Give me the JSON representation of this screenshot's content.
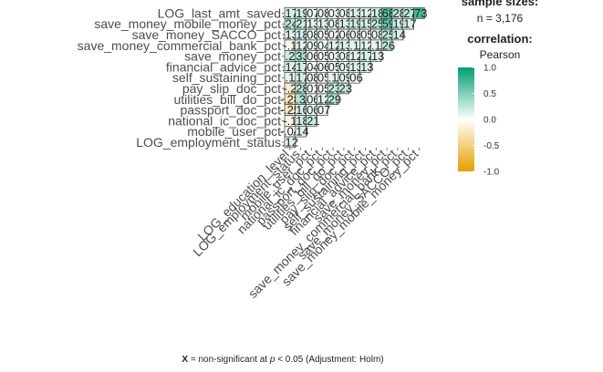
{
  "chart_data": {
    "type": "heatmap",
    "method": "Pearson",
    "row_labels": [
      "LOG_last_amt_saved",
      "save_money_mobile_money_pct",
      "save_money_SACCO_pct",
      "save_money_commercial_bank_pct",
      "save_money_pct",
      "financial_advice_pct",
      "self_sustaining_pct",
      "pay_slip_doc_pct",
      "utilities_bill_do_pct",
      "passport_doc_pct",
      "national_ic_doc_pct",
      "mobile_user_pct",
      "LOG_employment_status"
    ],
    "col_labels": [
      "LOG_education_level",
      "LOG_employment_status",
      "mobile_user_pct",
      "national_ic_doc_pct",
      "passport_doc_pct",
      "utilities_bill_do_pct",
      "pay_slip_doc_pct",
      "self_sustaining_pct",
      "financial_advice_pct",
      "save_money_pct",
      "save_money_commercial_bank_pct",
      "save_money_SACCO_pct",
      "save_money_mobile_money_pct"
    ],
    "values": [
      [
        0.17,
        0.19,
        0.07,
        0.08,
        0.03,
        0.08,
        0.13,
        0.12,
        0.18,
        0.68,
        0.28,
        0.27,
        0.73
      ],
      [
        0.24,
        0.21,
        0.13,
        0.13,
        0.08,
        0.13,
        0.19,
        0.15,
        0.25,
        0.59,
        0.19,
        0.17
      ],
      [
        0.13,
        0.18,
        0.08,
        0.05,
        0.02,
        0.06,
        0.08,
        0.05,
        0.08,
        0.25,
        0.14
      ],
      [
        -0.1,
        0.12,
        0.09,
        0.04,
        0.12,
        0.13,
        0.1,
        0.12,
        0.1,
        0.26
      ],
      [
        0.2,
        0.33,
        0.06,
        0.05,
        0.03,
        0.08,
        0.12,
        0.17,
        0.13
      ],
      [
        0.14,
        0.17,
        0.04,
        0.06,
        0.05,
        0.09,
        0.13,
        0.13
      ],
      [
        0.1,
        0.17,
        0.08,
        0.05,
        0.1,
        0.09,
        0.06
      ],
      [
        -0.2,
        0.28,
        0.01,
        0.05,
        0.23,
        0.23
      ],
      [
        -0.28,
        0.3,
        0.06,
        0.12,
        0.29
      ],
      [
        -0.25,
        0.16,
        0.06,
        0.07
      ],
      [
        -0.1,
        0.18,
        0.21
      ],
      [
        -0.04,
        0.14
      ],
      [
        0.12
      ]
    ],
    "legend": {
      "sample_title": "sample sizes:",
      "n_label": "n = 3,176",
      "corr_title": "correlation:",
      "method": "Pearson",
      "ticks": [
        "1.0",
        "0.5",
        "0.0",
        "-0.5",
        "-1.0"
      ],
      "colors": {
        "low": "#E69F00",
        "mid": "#FFFFFF",
        "high": "#009E73"
      }
    },
    "footnote": {
      "x_mark": "X",
      "text": " = non-significant at ",
      "p": "p",
      "threshold": " < 0.05 (Adjustment: Holm)"
    }
  }
}
